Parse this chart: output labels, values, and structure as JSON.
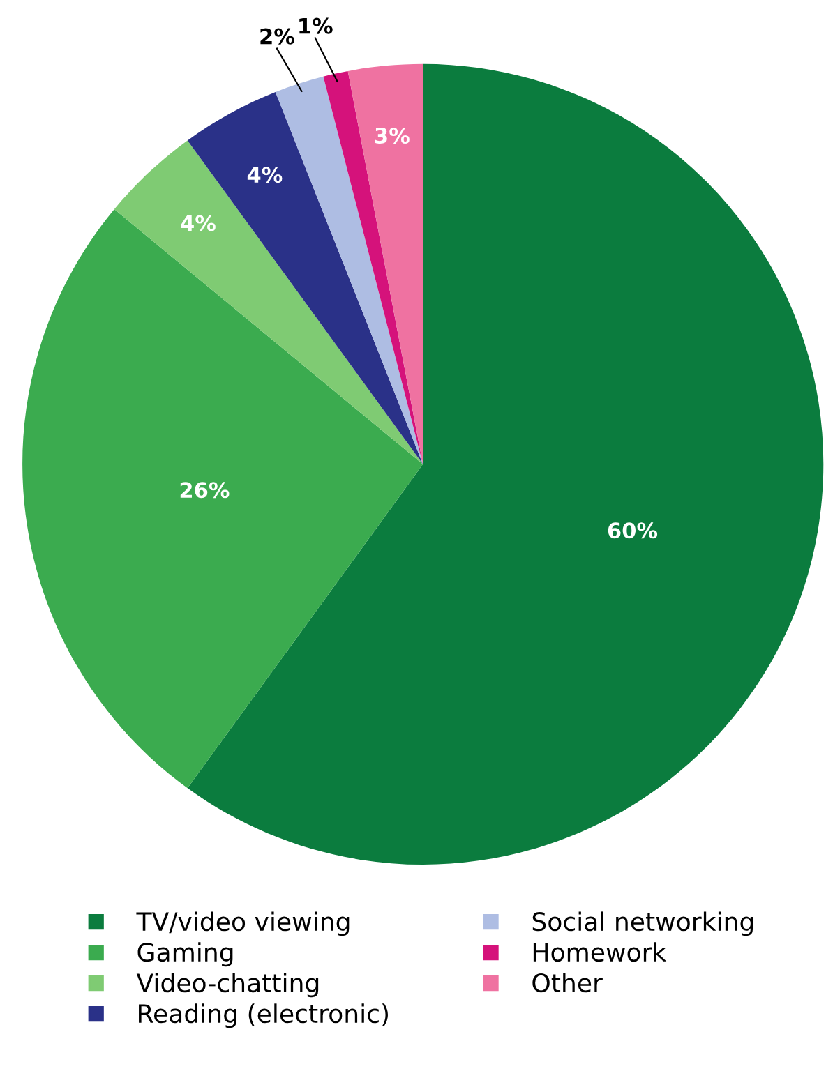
{
  "chart_data": {
    "type": "pie",
    "categories": [
      "TV/video viewing",
      "Gaming",
      "Video-chatting",
      "Reading (electronic)",
      "Social networking",
      "Homework",
      "Other"
    ],
    "values": [
      60,
      26,
      4,
      4,
      2,
      1,
      3
    ],
    "colors": [
      "#0b7c3e",
      "#3bab4f",
      "#7fcb73",
      "#2a3188",
      "#aebde3",
      "#d5127b",
      "#ef72a1"
    ],
    "value_labels": [
      "60%",
      "26%",
      "4%",
      "4%",
      "2%",
      "1%",
      "3%"
    ],
    "legend": "bottom"
  }
}
